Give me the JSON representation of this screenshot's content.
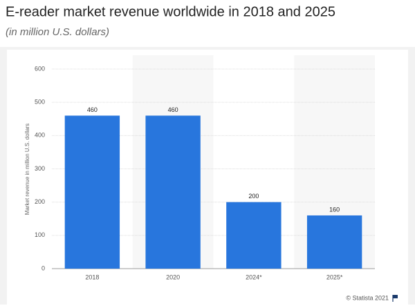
{
  "chart_data": {
    "type": "bar",
    "title": "E-reader market revenue worldwide in 2018 and 2025",
    "subtitle": "(in million U.S. dollars)",
    "y_label": "Market revenue in million U.S. dollars",
    "categories": [
      "2018",
      "2020",
      "2024*",
      "2025*"
    ],
    "values": [
      460,
      460,
      200,
      160
    ],
    "color": "#2876dd",
    "ylim": [
      0,
      600
    ],
    "yticks": [
      0,
      100,
      200,
      300,
      400,
      500,
      600
    ],
    "grid": true,
    "source": "© Statista 2021"
  }
}
